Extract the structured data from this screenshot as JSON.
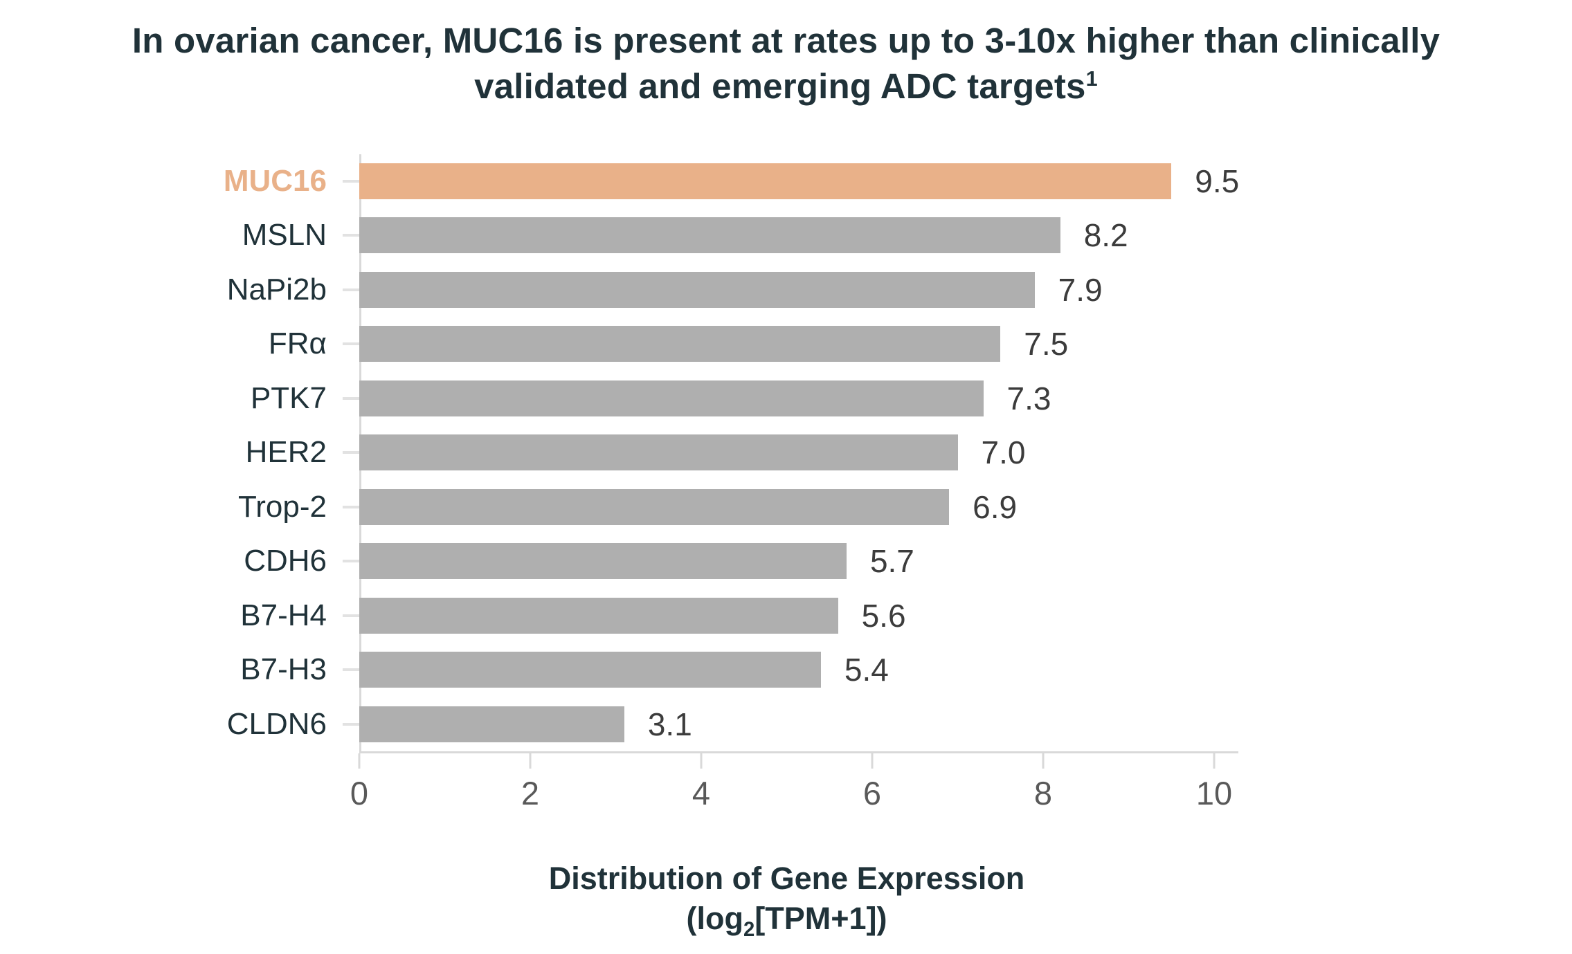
{
  "title": {
    "line1": "In ovarian cancer, MUC16 is present at rates up to 3-10x higher than clinically",
    "line2": "validated and emerging ADC targets",
    "footnote_marker": "1"
  },
  "chart_data": {
    "type": "bar",
    "orientation": "horizontal",
    "title": "In ovarian cancer, MUC16 is present at rates up to 3-10x higher than clinically validated and emerging ADC targets¹",
    "categories": [
      "MUC16",
      "MSLN",
      "NaPi2b",
      "FRα",
      "PTK7",
      "HER2",
      "Trop-2",
      "CDH6",
      "B7-H4",
      "B7-H3",
      "CLDN6"
    ],
    "values": [
      9.5,
      8.2,
      7.9,
      7.5,
      7.3,
      7.0,
      6.9,
      5.7,
      5.6,
      5.4,
      3.1
    ],
    "highlight_index": 0,
    "highlight_category": "MUC16",
    "xlim": [
      0,
      10
    ],
    "xticks": [
      "0",
      "2",
      "4",
      "6",
      "8",
      "10"
    ],
    "xlabel": {
      "line1": "Distribution of Gene Expression",
      "line2_prefix": "(log",
      "line2_sub": "2",
      "line2_suffix": "[TPM+1])"
    },
    "grid": false,
    "legend": "none",
    "colors": {
      "highlight_bar": "#E9B189",
      "bar": "#AFAFAF",
      "title_text": "#203239",
      "value_text": "#3C3C3C",
      "tick_text": "#595959",
      "axis_line": "#D9D9D9"
    }
  }
}
